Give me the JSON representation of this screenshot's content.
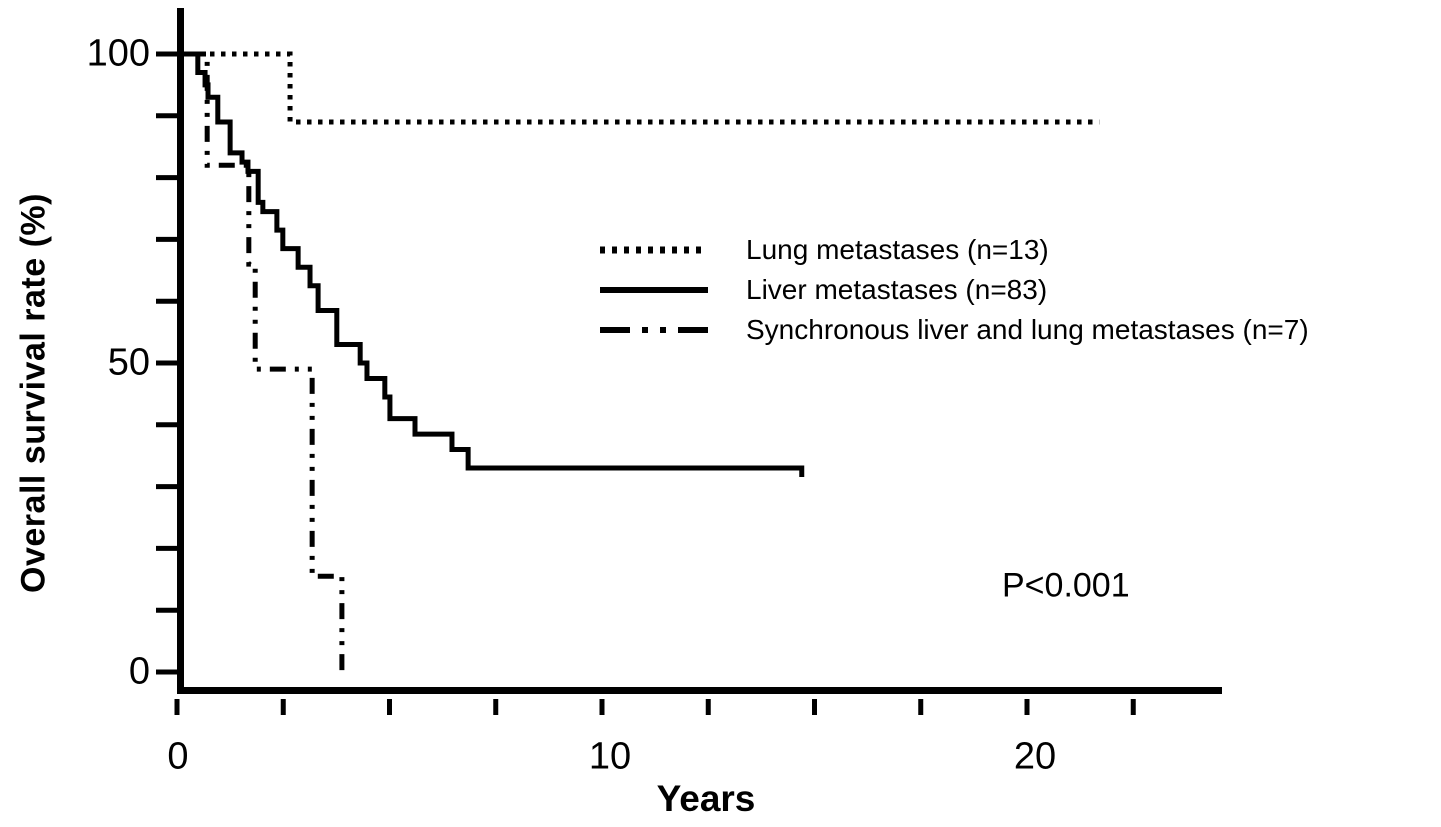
{
  "chart_data": {
    "type": "line",
    "subtype": "kaplan-meier-step",
    "title": "",
    "xlabel": "Years",
    "ylabel": "Overall survival rate (%)",
    "xlim": [
      0,
      24.6
    ],
    "ylim": [
      0,
      100
    ],
    "x_tick_step": 2.5,
    "y_tick_step": 10,
    "x_labeled_ticks": [
      {
        "value": 0,
        "label": "0"
      },
      {
        "value": 10,
        "label": "10"
      },
      {
        "value": 20,
        "label": "20"
      }
    ],
    "y_labeled_ticks": [
      {
        "value": 100,
        "label": "100"
      },
      {
        "value": 50,
        "label": "50"
      },
      {
        "value": 0,
        "label": "0"
      }
    ],
    "grid": false,
    "legend_position": "inside-upper-right",
    "annotation": {
      "text": "P<0.001"
    },
    "line_color": "#000000",
    "background_color": "#ffffff",
    "series": [
      {
        "name": "Lung metastases (n=13)",
        "style": "dotted",
        "color": "#000000",
        "points": [
          [
            0,
            100
          ],
          [
            2.66,
            89
          ]
        ],
        "end_time": 21.7,
        "censor_tick_at_end": false
      },
      {
        "name": "Liver metastases (n=83)",
        "style": "solid",
        "color": "#000000",
        "points": [
          [
            0,
            100
          ],
          [
            0.49,
            97
          ],
          [
            0.66,
            95
          ],
          [
            0.73,
            93
          ],
          [
            0.96,
            89
          ],
          [
            1.25,
            84
          ],
          [
            1.53,
            82.5
          ],
          [
            1.67,
            81
          ],
          [
            1.91,
            76
          ],
          [
            2.02,
            74.5
          ],
          [
            2.35,
            71.5
          ],
          [
            2.49,
            68.5
          ],
          [
            2.85,
            65.5
          ],
          [
            3.13,
            62.5
          ],
          [
            3.32,
            58.5
          ],
          [
            3.76,
            53
          ],
          [
            4.31,
            50
          ],
          [
            4.47,
            47.5
          ],
          [
            4.89,
            44.5
          ],
          [
            5.01,
            41
          ],
          [
            5.6,
            38.5
          ],
          [
            6.47,
            36
          ],
          [
            6.85,
            33
          ]
        ],
        "end_time": 14.7,
        "censor_tick_at_end": true
      },
      {
        "name": "Synchronous liver and lung metastases (n=7)",
        "style": "dash-dot-dot",
        "color": "#000000",
        "points": [
          [
            0,
            100
          ],
          [
            0.71,
            82
          ],
          [
            1.69,
            66
          ],
          [
            1.84,
            49
          ],
          [
            3.18,
            15.5
          ],
          [
            3.88,
            0
          ]
        ],
        "end_time": 3.88,
        "censor_tick_at_end": false
      }
    ]
  }
}
